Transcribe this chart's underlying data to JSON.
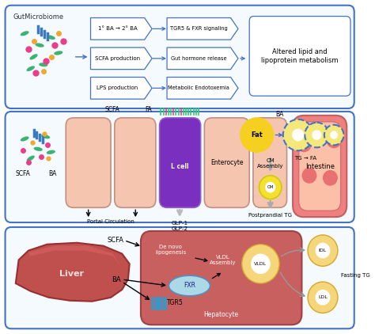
{
  "panel1": {
    "gut_label": "GutMicrobiome",
    "box1_labels": [
      "1° BA → 2° BA",
      "SCFA production",
      "LPS production"
    ],
    "box2_labels": [
      "TGR5 & FXR signaling",
      "Gut hormone release",
      "Metabolic Endotoxemia"
    ],
    "box3_label": "Altered lipid and\nlipoprotein metabolism"
  },
  "panel2": {
    "portal_label": "Portal Circulation",
    "glp_labels": "GLP-1\nGLP-2",
    "scfa_label": "SCFA",
    "ba_label": "BA",
    "scfa2_label": "SCFA",
    "fa_label": "FA",
    "fat_label": "Fat",
    "tg_label": "TG → FA",
    "ba2_label": "BA",
    "cm_assembly_label": "CM\nAssembly",
    "cm_label": "CM",
    "postprandial_label": "Postprandial TG",
    "intestine_label": "Intestine",
    "lcell_label": "L cell",
    "enterocyte_label": "Enterocyte"
  },
  "panel3": {
    "liver_label": "Liver",
    "hepatocyte_label": "Hepatocyte",
    "scfa_label": "SCFA",
    "ba_label": "BA",
    "fxr_label": "FXR",
    "tgr5_label": "TGR5",
    "denovo_label": "De novo\nlipogenesis",
    "vldl_assembly_label": "VLDL\nAssembly",
    "vldl_label": "VLDL",
    "idl_label": "IDL",
    "ldl_label": "LDL",
    "fasting_tg_label": "Fasting TG"
  },
  "bg_color": "#ffffff",
  "border_color": "#4472c4"
}
